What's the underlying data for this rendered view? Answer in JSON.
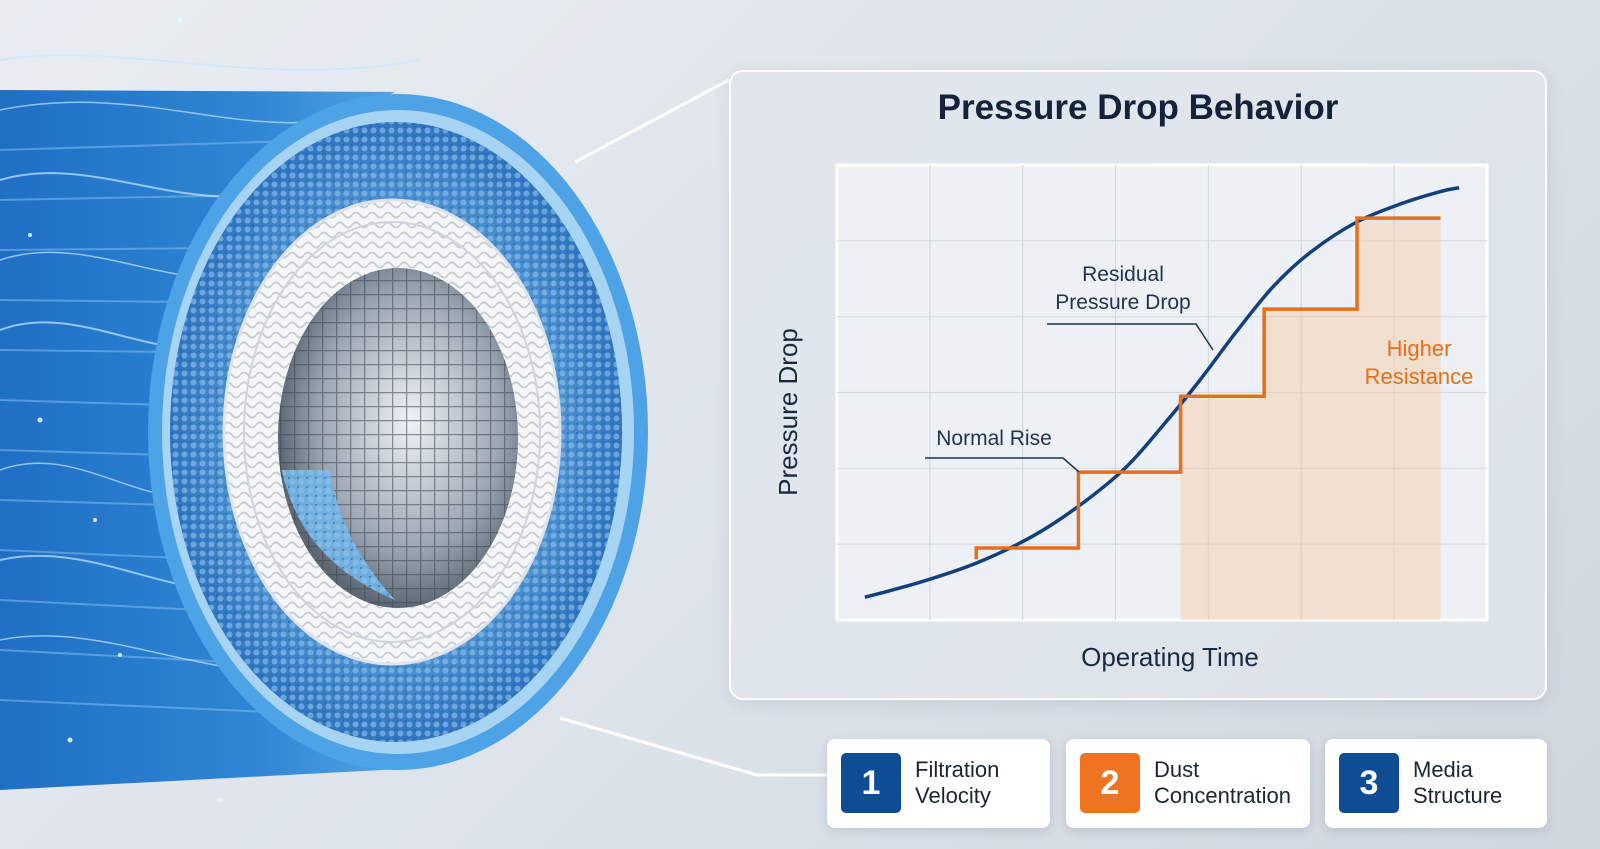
{
  "title": "Pressure Drop Behavior",
  "colors": {
    "curve": "#123f7e",
    "steps": "#e86e1a",
    "badge_blue": "#0e4c93",
    "badge_orange": "#ee7421",
    "filter_blue": "#3b8fd6"
  },
  "annotations": {
    "residual_line1": "Residual",
    "residual_line2": "Pressure Drop",
    "normal_rise": "Normal Rise",
    "higher_line1": "Higher",
    "higher_line2": "Resistance"
  },
  "chart_data": {
    "type": "line",
    "title": "Pressure Drop Behavior",
    "xlabel": "Operating Time",
    "ylabel": "Pressure Drop",
    "grid": true,
    "x_ticks_labeled": false,
    "y_ticks_labeled": false,
    "xlim": [
      0,
      7
    ],
    "ylim": [
      0,
      6
    ],
    "series": [
      {
        "style": "smooth",
        "color": "#123f7e",
        "x": [
          0.3,
          0.9,
          1.5,
          2.1,
          2.6,
          3.1,
          3.5,
          3.9,
          4.3,
          4.7,
          5.1,
          5.6,
          6.1,
          6.5,
          6.7
        ],
        "values": [
          0.3,
          0.5,
          0.75,
          1.1,
          1.5,
          2.0,
          2.55,
          3.15,
          3.8,
          4.4,
          4.85,
          5.25,
          5.5,
          5.65,
          5.7
        ]
      },
      {
        "style": "step",
        "color": "#e86e1a",
        "x": [
          1.5,
          1.5,
          2.6,
          2.6,
          3.7,
          3.7,
          4.6,
          4.6,
          5.6,
          5.6,
          6.5
        ],
        "values": [
          0.8,
          0.95,
          0.95,
          1.95,
          1.95,
          2.95,
          2.95,
          4.1,
          4.1,
          5.3,
          5.3
        ]
      }
    ]
  },
  "factors": [
    {
      "number": "1",
      "line1": "Filtration",
      "line2": "Velocity",
      "color": "#0e4c93"
    },
    {
      "number": "2",
      "line1": "Dust",
      "line2": "Concentration",
      "color": "#ee7421"
    },
    {
      "number": "3",
      "line1": "Media",
      "line2": "Structure",
      "color": "#0e4c93"
    }
  ]
}
